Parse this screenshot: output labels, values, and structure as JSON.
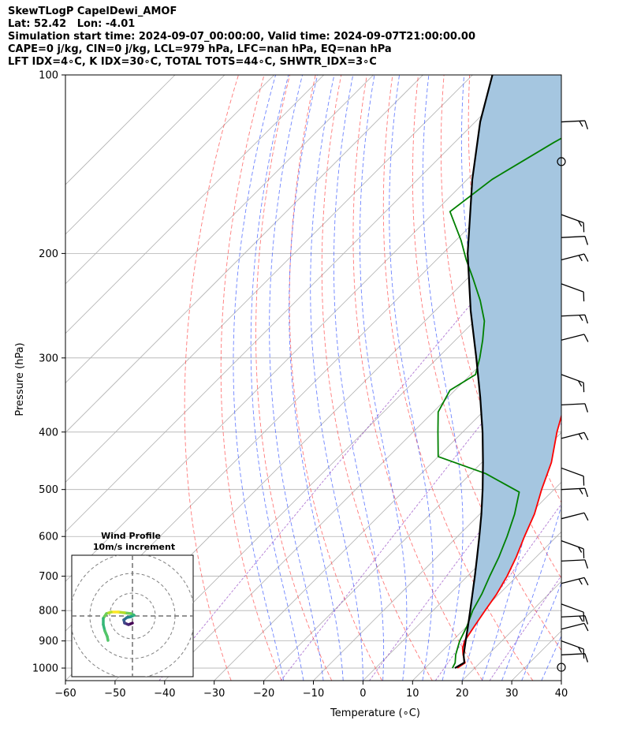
{
  "title_lines": [
    "SkewTLogP CapelDewi_AMOF",
    "Lat: 52.42   Lon: -4.01",
    "Simulation start time: 2024-09-07_00:00:00, Valid time: 2024-09-07T21:00:00.00",
    "CAPE=0 j/kg, CIN=0 j/kg, LCL=979 hPa, LFC=nan hPa, EQ=nan hPa",
    "LFT IDX=4∘C, K IDX=30∘C, TOTAL TOTS=44∘C, SHWTR_IDX=3∘C"
  ],
  "chart_data": {
    "type": "line",
    "subtype": "skew-t log-p",
    "xlabel": "Temperature (∘C)",
    "ylabel": "Pressure (hPa)",
    "xlim": [
      -60,
      40
    ],
    "ylim": [
      1050,
      100
    ],
    "y_scale": "log",
    "x_ticks": [
      "−60",
      "−50",
      "−40",
      "−30",
      "−20",
      "−10",
      "0",
      "10",
      "20",
      "30",
      "40"
    ],
    "y_ticks": [
      "100",
      "200",
      "300",
      "400",
      "500",
      "600",
      "700",
      "800",
      "900",
      "1000"
    ],
    "grid": true,
    "series": [
      {
        "role": "temperature",
        "color": "#ff0000",
        "points": [
          [
            1000,
            16.5
          ],
          [
            980,
            17
          ],
          [
            950,
            15
          ],
          [
            925,
            13.5
          ],
          [
            900,
            12.5
          ],
          [
            850,
            11.5
          ],
          [
            800,
            10.5
          ],
          [
            750,
            9.5
          ],
          [
            700,
            8
          ],
          [
            650,
            6
          ],
          [
            600,
            3.5
          ],
          [
            550,
            1
          ],
          [
            500,
            -2.5
          ],
          [
            450,
            -6
          ],
          [
            400,
            -11
          ],
          [
            350,
            -16
          ],
          [
            300,
            -22
          ],
          [
            275,
            -26
          ],
          [
            250,
            -31
          ],
          [
            235,
            -35
          ],
          [
            220,
            -38.5
          ],
          [
            200,
            -41
          ],
          [
            185,
            -42
          ],
          [
            170,
            -44.5
          ],
          [
            150,
            -47
          ],
          [
            130,
            -50
          ],
          [
            115,
            -51
          ],
          [
            100,
            -52
          ]
        ]
      },
      {
        "role": "dewpoint",
        "color": "#008000",
        "points": [
          [
            1000,
            15.5
          ],
          [
            980,
            15
          ],
          [
            950,
            13.5
          ],
          [
            925,
            12.5
          ],
          [
            900,
            11.5
          ],
          [
            850,
            10
          ],
          [
            800,
            8
          ],
          [
            750,
            6.5
          ],
          [
            700,
            4.5
          ],
          [
            650,
            2.5
          ],
          [
            600,
            0
          ],
          [
            550,
            -3
          ],
          [
            505,
            -6.5
          ],
          [
            470,
            -17
          ],
          [
            440,
            -30
          ],
          [
            400,
            -35
          ],
          [
            370,
            -39
          ],
          [
            340,
            -41
          ],
          [
            320,
            -39
          ],
          [
            300,
            -41.5
          ],
          [
            280,
            -44.5
          ],
          [
            260,
            -48
          ],
          [
            240,
            -53
          ],
          [
            220,
            -59
          ],
          [
            205,
            -64
          ],
          [
            190,
            -69
          ],
          [
            170,
            -77
          ],
          [
            150,
            -75
          ],
          [
            130,
            -70
          ],
          [
            110,
            -63
          ],
          [
            100,
            -57
          ]
        ]
      },
      {
        "role": "parcel",
        "color": "#000000",
        "points": [
          [
            1000,
            16
          ],
          [
            979,
            16.8
          ],
          [
            950,
            15.1
          ],
          [
            900,
            12.7
          ],
          [
            850,
            10.2
          ],
          [
            800,
            7.5
          ],
          [
            750,
            4.6
          ],
          [
            700,
            1.5
          ],
          [
            650,
            -1.9
          ],
          [
            600,
            -5.6
          ],
          [
            550,
            -9.7
          ],
          [
            500,
            -14.4
          ],
          [
            450,
            -19.8
          ],
          [
            400,
            -26
          ],
          [
            350,
            -33.4
          ],
          [
            300,
            -42.2
          ],
          [
            250,
            -52.8
          ],
          [
            200,
            -65
          ],
          [
            150,
            -79
          ],
          [
            120,
            -89
          ],
          [
            100,
            -96
          ]
        ]
      }
    ],
    "wind_barbs_pressure_hpa": [
      997,
      950,
      900,
      860,
      820,
      780,
      720,
      660,
      610,
      560,
      500,
      460,
      410,
      360,
      320,
      280,
      255,
      225,
      205,
      188,
      172,
      140,
      120
    ],
    "wind_profile_inset": {
      "title": "Wind Profile",
      "subtitle": "10m/s increment",
      "rings_ms": [
        10,
        20,
        30
      ]
    }
  }
}
